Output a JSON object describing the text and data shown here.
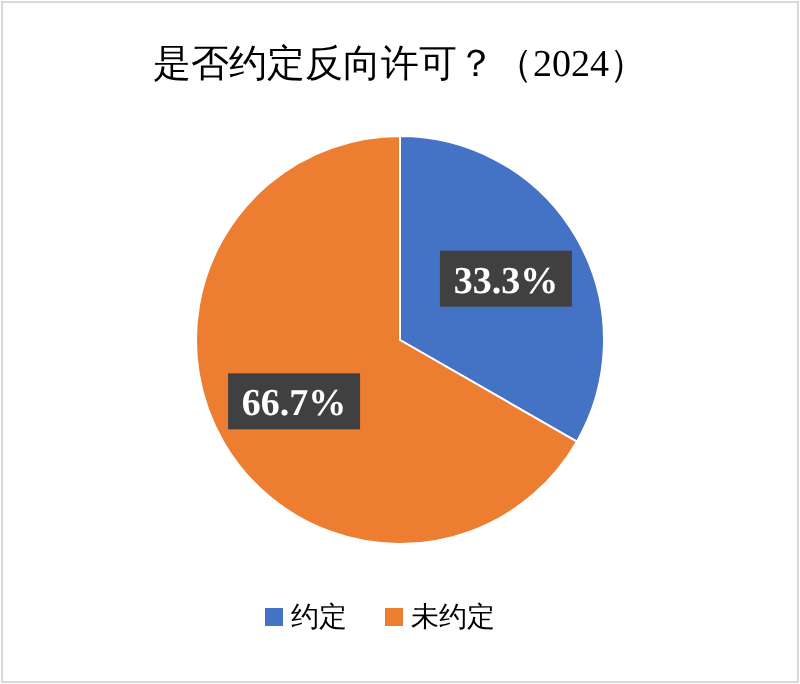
{
  "chart_data": {
    "type": "pie",
    "title": "是否约定反向许可？（2024）",
    "categories": [
      "约定",
      "未约定"
    ],
    "values": [
      33.3,
      66.7
    ],
    "colors": [
      "#4472c4",
      "#ed7d31"
    ],
    "value_labels": [
      "33.3%",
      "66.7%"
    ],
    "legend": "bottom"
  }
}
